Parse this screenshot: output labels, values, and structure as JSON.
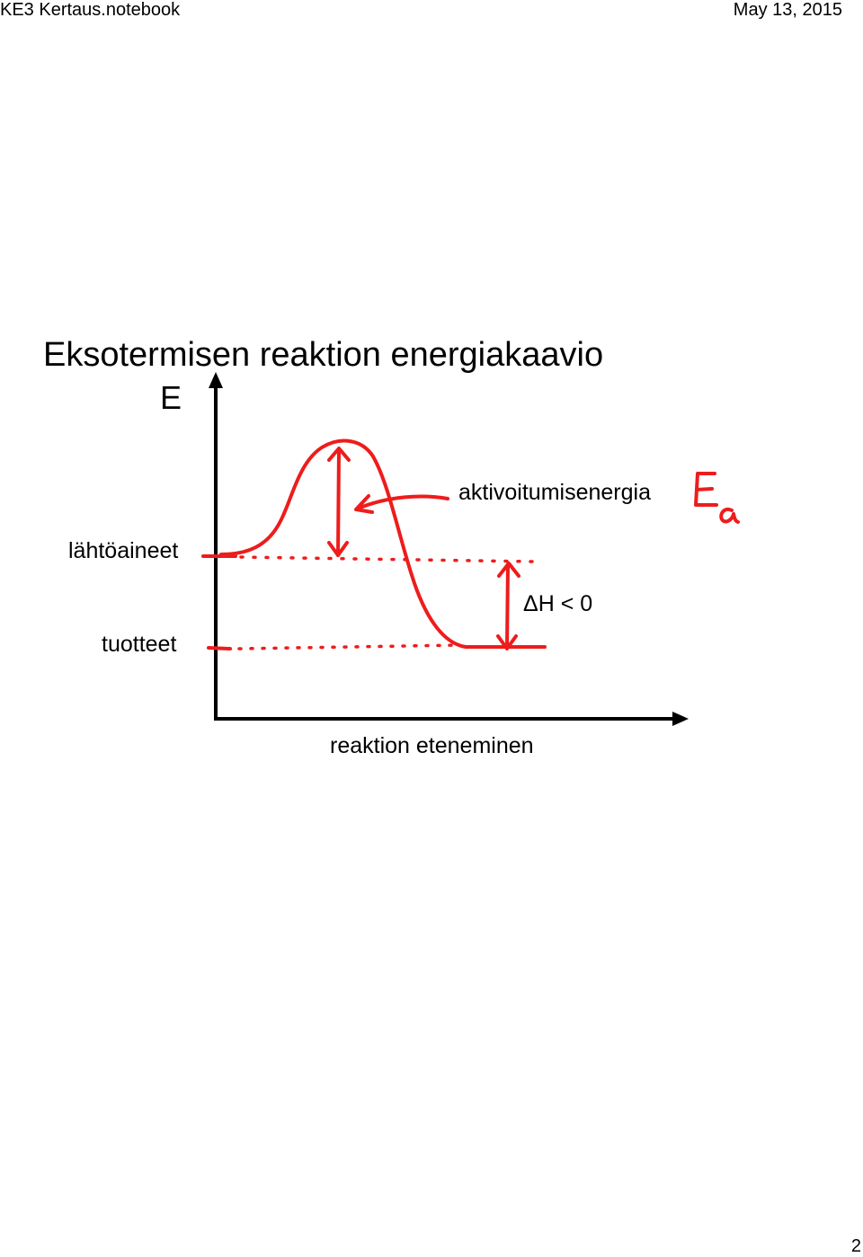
{
  "header": {
    "filename": "KE3 Kertaus.notebook",
    "date": "May 13, 2015"
  },
  "page_number": "2",
  "title": "Eksotermisen reaktion energiakaavio",
  "diagram": {
    "y_axis_label": "E",
    "x_axis_label": "reaktion eteneminen",
    "reactants_label": "lähtöaineet",
    "products_label": "tuotteet",
    "activation_energy_label": "aktivoitumisenergia",
    "enthalpy_label": "ΔH < 0",
    "handwritten_symbol": "Ea",
    "colors": {
      "axis": "#000000",
      "curve": "#ee1c1c",
      "text": "#000000"
    }
  }
}
